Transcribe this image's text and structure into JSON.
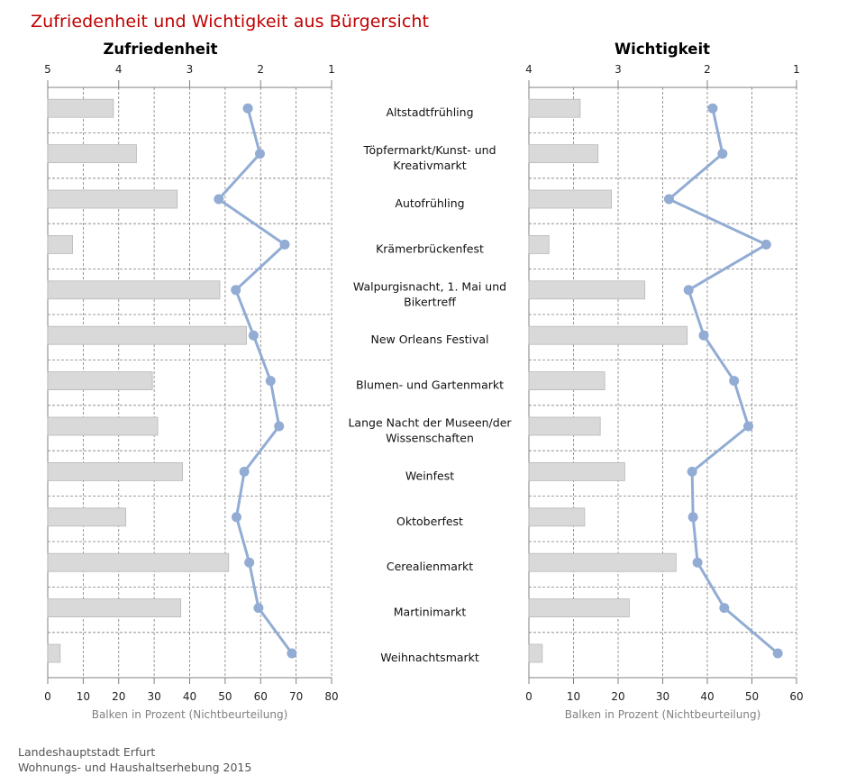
{
  "title": "Zufriedenheit und Wichtigkeit aus Bürgersicht",
  "footer": {
    "line1": "Landeshauptstadt  Erfurt",
    "line2": "Wohnungs- und Haushaltserhebung  2015"
  },
  "colors": {
    "title": "#c00000",
    "bar_fill": "#d9d9d9",
    "bar_stroke": "#b8b8b8",
    "line": "#92acd4",
    "grid": "#808080",
    "axis_text": "#222222",
    "xlabel_text": "#808080"
  },
  "chart_data": [
    {
      "type": "bar",
      "title": "Zufriedenheit",
      "xlabel": "Balken in Prozent (Nichtbeurteilung)",
      "bar_axis": {
        "range": [
          0,
          80
        ],
        "ticks": [
          0,
          10,
          20,
          30,
          40,
          50,
          60,
          70,
          80
        ]
      },
      "rating_axis": {
        "range": [
          5,
          1
        ],
        "ticks": [
          5,
          4,
          3,
          2,
          1
        ]
      },
      "categories": [
        "Altstadtfrühling",
        "Töpfermarkt/Kunst- und Kreativmarkt",
        "Autofrühling",
        "Krämerbrückenfest",
        "Walpurgisnacht, 1. Mai und Bikertreff",
        "New Orleans Festival",
        "Blumen- und Gartenmarkt",
        "Lange Nacht der Museen/der Wissenschaften",
        "Weinfest",
        "Oktoberfest",
        "Cerealienmarkt",
        "Martinimarkt",
        "Weihnachtsmarkt"
      ],
      "series": [
        {
          "kind": "bar",
          "values": [
            18.5,
            25,
            36.5,
            7,
            48.5,
            56,
            29.5,
            31,
            38,
            22,
            51,
            37.5,
            3.5
          ]
        },
        {
          "kind": "line",
          "values": [
            2.18,
            2.01,
            2.59,
            1.66,
            2.35,
            2.1,
            1.86,
            1.74,
            2.23,
            2.34,
            2.16,
            2.03,
            1.56
          ]
        }
      ]
    },
    {
      "type": "bar",
      "title": "Wichtigkeit",
      "xlabel": "Balken in Prozent (Nichtbeurteilung)",
      "bar_axis": {
        "range": [
          0,
          60
        ],
        "ticks": [
          0,
          10,
          20,
          30,
          40,
          50,
          60
        ]
      },
      "rating_axis": {
        "range": [
          4,
          1
        ],
        "ticks": [
          4,
          3,
          2,
          1
        ]
      },
      "categories": [
        "Altstadtfrühling",
        "Töpfermarkt/Kunst- und Kreativmarkt",
        "Autofrühling",
        "Krämerbrückenfest",
        "Walpurgisnacht, 1. Mai und Bikertreff",
        "New Orleans Festival",
        "Blumen- und Gartenmarkt",
        "Lange Nacht der Museen/der Wissenschaften",
        "Weinfest",
        "Oktoberfest",
        "Cerealienmarkt",
        "Martinimarkt",
        "Weihnachtsmarkt"
      ],
      "series": [
        {
          "kind": "bar",
          "values": [
            11.5,
            15.5,
            18.5,
            4.5,
            26,
            35.5,
            17,
            16,
            21.5,
            12.5,
            33,
            22.5,
            3
          ]
        },
        {
          "kind": "line",
          "values": [
            1.94,
            1.83,
            2.43,
            1.34,
            2.21,
            2.04,
            1.7,
            1.54,
            2.17,
            2.16,
            2.11,
            1.81,
            1.21
          ]
        }
      ]
    }
  ],
  "category_labels": [
    [
      "Altstadtfrühling"
    ],
    [
      "Töpfermarkt/Kunst- und",
      "Kreativmarkt"
    ],
    [
      "Autofrühling"
    ],
    [
      "Krämerbrückenfest"
    ],
    [
      "Walpurgisnacht, 1. Mai und",
      "Bikertreff"
    ],
    [
      "New Orleans Festival"
    ],
    [
      "Blumen- und Gartenmarkt"
    ],
    [
      "Lange Nacht der Museen/der",
      "Wissenschaften"
    ],
    [
      "Weinfest"
    ],
    [
      "Oktoberfest"
    ],
    [
      "Cerealienmarkt"
    ],
    [
      "Martinimarkt"
    ],
    [
      "Weihnachtsmarkt"
    ]
  ]
}
